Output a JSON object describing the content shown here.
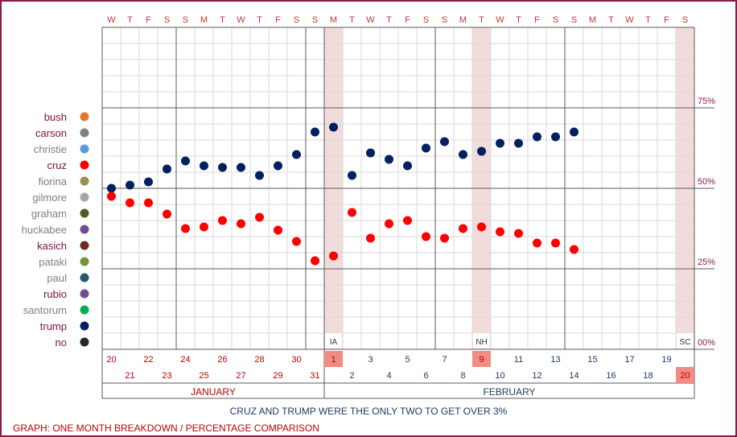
{
  "chart_data": {
    "type": "scatter",
    "days": [
      "W",
      "T",
      "F",
      "S",
      "S",
      "M",
      "T",
      "W",
      "T",
      "F",
      "S",
      "S",
      "M",
      "T",
      "W",
      "T",
      "F",
      "S",
      "S",
      "M",
      "T",
      "W",
      "T",
      "F",
      "S",
      "S",
      "M",
      "T",
      "W",
      "T",
      "F",
      "S"
    ],
    "dates": [
      "20",
      "21",
      "22",
      "23",
      "24",
      "25",
      "26",
      "27",
      "28",
      "29",
      "30",
      "31",
      "1",
      "2",
      "3",
      "4",
      "5",
      "6",
      "7",
      "8",
      "9",
      "10",
      "11",
      "12",
      "13",
      "14",
      "15",
      "16",
      "17",
      "18",
      "19",
      "20"
    ],
    "months": [
      {
        "label": "JANUARY",
        "start": 0,
        "end": 11,
        "color": "#c00000"
      },
      {
        "label": "FEBRUARY",
        "start": 12,
        "end": 31,
        "color": "#1f3864"
      }
    ],
    "events": [
      {
        "index": 12,
        "label": "IA"
      },
      {
        "index": 20,
        "label": "NH"
      },
      {
        "index": 31,
        "label": "SC"
      }
    ],
    "yticks": [
      {
        "value": 0,
        "label": "00%"
      },
      {
        "value": 25,
        "label": "25%"
      },
      {
        "value": 50,
        "label": "50%"
      },
      {
        "value": 75,
        "label": "75%"
      }
    ],
    "ylim": [
      0,
      100
    ],
    "legend": [
      {
        "name": "bush",
        "color": "#e87722",
        "text_color": "#7b1040"
      },
      {
        "name": "carson",
        "color": "#7f7f7f",
        "text_color": "#7b1040"
      },
      {
        "name": "christie",
        "color": "#5b9bd5",
        "text_color": "#7f7f7f"
      },
      {
        "name": "cruz",
        "color": "#ff0000",
        "text_color": "#7b1040"
      },
      {
        "name": "fiorina",
        "color": "#9c8f4e",
        "text_color": "#7f7f7f"
      },
      {
        "name": "gilmore",
        "color": "#a6a6a6",
        "text_color": "#7f7f7f"
      },
      {
        "name": "graham",
        "color": "#4e5d1f",
        "text_color": "#7f7f7f"
      },
      {
        "name": "huckabee",
        "color": "#6f4e8f",
        "text_color": "#7f7f7f"
      },
      {
        "name": "kasich",
        "color": "#6e2b1f",
        "text_color": "#7b1040"
      },
      {
        "name": "pataki",
        "color": "#77933c",
        "text_color": "#7f7f7f"
      },
      {
        "name": "paul",
        "color": "#215967",
        "text_color": "#7f7f7f"
      },
      {
        "name": "rubio",
        "color": "#6f4e8f",
        "text_color": "#7b1040"
      },
      {
        "name": "santorum",
        "color": "#00b050",
        "text_color": "#7f7f7f"
      },
      {
        "name": "trump",
        "color": "#002060",
        "text_color": "#7b1040"
      },
      {
        "name": "no",
        "color": "#262626",
        "text_color": "#7b1040"
      }
    ],
    "series": [
      {
        "name": "trump",
        "color": "#002060",
        "values": [
          50,
          51,
          52,
          56,
          58.5,
          57,
          56.5,
          56.5,
          54,
          57,
          60.5,
          67.5,
          69,
          54,
          61,
          59,
          57,
          62.5,
          64.5,
          60.5,
          61.5,
          64,
          64,
          66,
          66,
          67.5,
          null,
          null,
          null,
          null,
          null,
          null
        ]
      },
      {
        "name": "cruz",
        "color": "#ff0000",
        "values": [
          47.5,
          45.5,
          45.5,
          42,
          37.5,
          38,
          40,
          39,
          41,
          37,
          33.5,
          27.5,
          29,
          42.5,
          34.5,
          39,
          40,
          35,
          34.5,
          37.5,
          38,
          36.5,
          36,
          33,
          33,
          31,
          null,
          null,
          null,
          null,
          null,
          null
        ]
      }
    ]
  },
  "caption": "CRUZ AND TRUMP WERE THE ONLY TWO TO GET OVER 3%",
  "footer": "GRAPH: ONE MONTH BREAKDOWN / PERCENTAGE COMPARISON"
}
